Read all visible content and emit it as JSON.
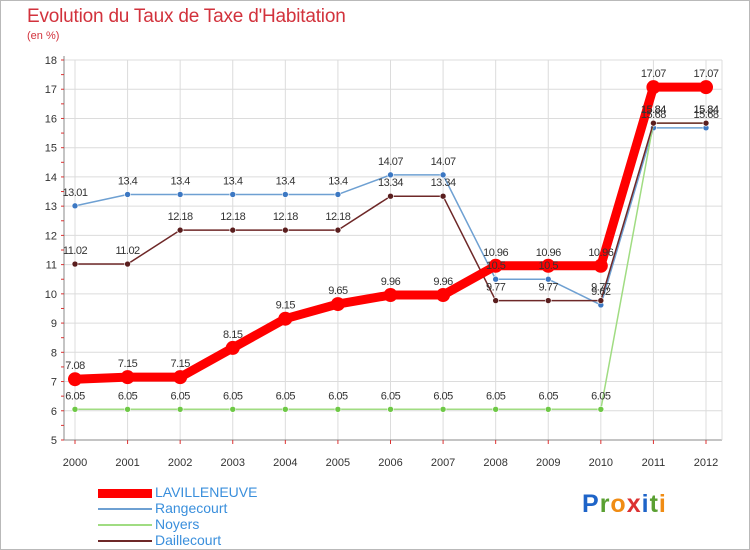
{
  "title": "Evolution du Taux de Taxe d'Habitation",
  "subtitle": "(en %)",
  "chart_data": {
    "type": "line",
    "title": "Evolution du Taux de Taxe d'Habitation",
    "ylabel": "(en %)",
    "xlabel": "",
    "x": [
      "2000",
      "2001",
      "2002",
      "2003",
      "2004",
      "2005",
      "2006",
      "2007",
      "2008",
      "2009",
      "2010",
      "2011",
      "2012"
    ],
    "ylim": [
      5,
      18
    ],
    "yticks": [
      "5",
      "6",
      "7",
      "8",
      "9",
      "10",
      "11",
      "12",
      "13",
      "14",
      "15",
      "16",
      "17",
      "18"
    ],
    "grid": true,
    "legend_position": "bottom-left",
    "series": [
      {
        "name": "LAVILLENEUVE",
        "color": "#ff0000",
        "marker_color": "#ff0000",
        "values": [
          7.08,
          7.15,
          7.15,
          8.15,
          9.15,
          9.65,
          9.96,
          9.96,
          10.96,
          10.96,
          10.96,
          17.07,
          17.07
        ],
        "labels": [
          "7.08",
          "7.15",
          "7.15",
          "8.15",
          "9.15",
          "9.65",
          "9.96",
          "9.96",
          "10.96",
          "10.96",
          "10.96",
          "17.07",
          "17.07"
        ]
      },
      {
        "name": "Rangecourt",
        "color": "#6ea0d2",
        "marker_color": "#3c78c3",
        "values": [
          13.01,
          13.4,
          13.4,
          13.4,
          13.4,
          13.4,
          14.07,
          14.07,
          10.5,
          10.5,
          9.62,
          15.68,
          15.68
        ],
        "labels": [
          "13.01",
          "13.4",
          "13.4",
          "13.4",
          "13.4",
          "13.4",
          "14.07",
          "14.07",
          "10.5",
          "10.5",
          "9.62",
          "15.68",
          "15.68"
        ]
      },
      {
        "name": "Noyers",
        "color": "#a0dc82",
        "marker_color": "#6ec846",
        "values": [
          6.05,
          6.05,
          6.05,
          6.05,
          6.05,
          6.05,
          6.05,
          6.05,
          6.05,
          6.05,
          6.05,
          15.84,
          15.84
        ],
        "labels": [
          "6.05",
          "6.05",
          "6.05",
          "6.05",
          "6.05",
          "6.05",
          "6.05",
          "6.05",
          "6.05",
          "6.05",
          "6.05",
          "15.84",
          "15.84"
        ]
      },
      {
        "name": "Daillecourt",
        "color": "#6e2828",
        "marker_color": "#5a1e1e",
        "values": [
          11.02,
          11.02,
          12.18,
          12.18,
          12.18,
          12.18,
          13.34,
          13.34,
          9.77,
          9.77,
          9.77,
          15.84,
          15.84
        ],
        "labels": [
          "11.02",
          "11.02",
          "12.18",
          "12.18",
          "12.18",
          "12.18",
          "13.34",
          "13.34",
          "9.77",
          "9.77",
          "9.77",
          "15.84",
          "15.84"
        ]
      }
    ]
  },
  "legend": {
    "items": [
      "LAVILLENEUVE",
      "Rangecourt",
      "Noyers",
      "Daillecourt"
    ]
  },
  "logo": {
    "letters": [
      "P",
      "r",
      "o",
      "x",
      "i",
      "t",
      "i"
    ],
    "colors": [
      "#1e64c8",
      "#5aa032",
      "#f08c14",
      "#dc3232",
      "#1e64c8",
      "#5aa032",
      "#f08c14"
    ]
  }
}
